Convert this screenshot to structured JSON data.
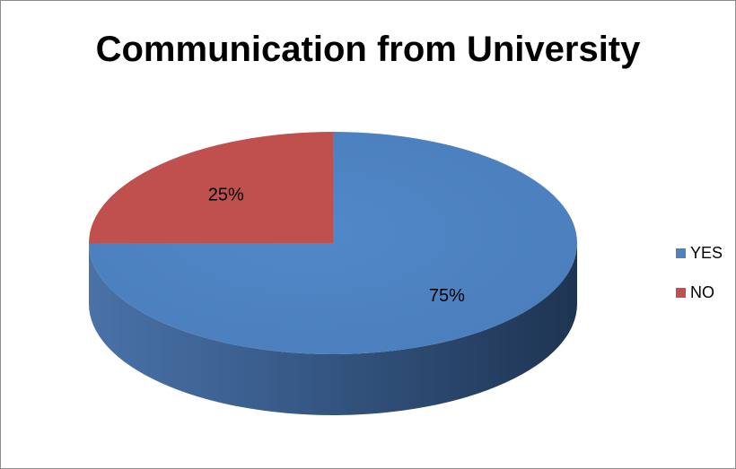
{
  "chart_data": {
    "type": "pie",
    "title": "Communication from University",
    "slices": [
      {
        "name": "YES",
        "value": 75,
        "label": "75%",
        "color": "#4F81BD",
        "side_color": "#3A6191",
        "side_color_dark": "#1F3A5C"
      },
      {
        "name": "NO",
        "value": 25,
        "label": "25%",
        "color": "#C0504D",
        "side_color": "#8E3A38",
        "side_color_dark": "#6A2928"
      }
    ],
    "legend": {
      "position": "right",
      "entries": [
        "YES",
        "NO"
      ]
    },
    "style": "3d"
  }
}
